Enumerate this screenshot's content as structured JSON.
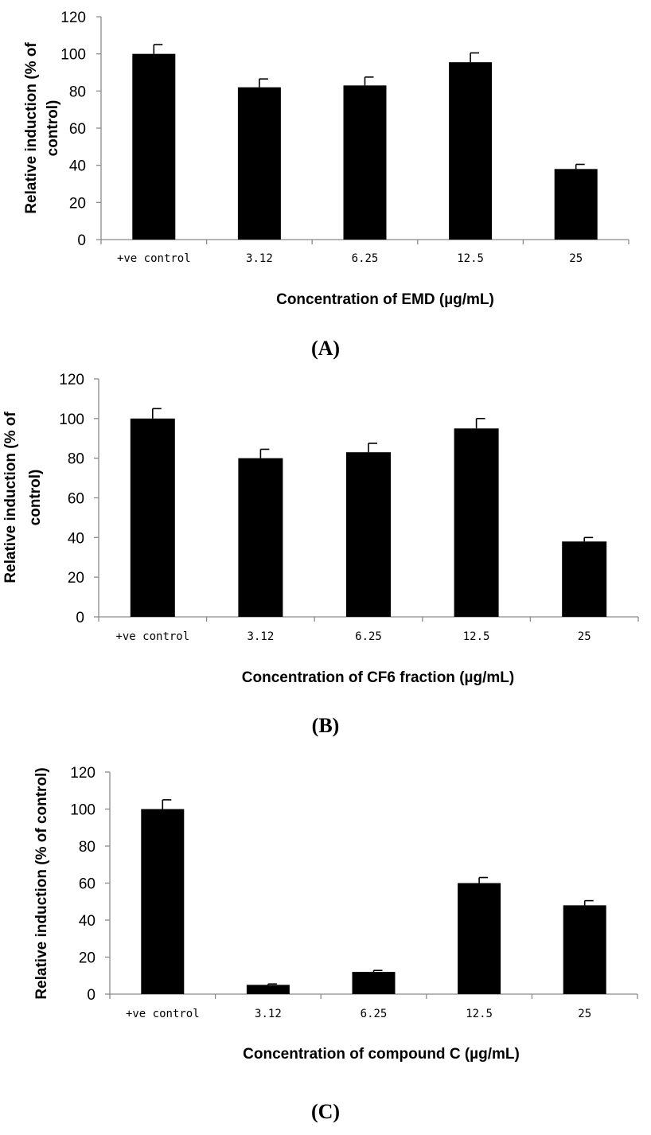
{
  "chart_data": [
    {
      "type": "bar",
      "title": "",
      "xlabel": "Concentration of EMD (µg/mL)",
      "ylabel_lines": [
        "Relative induction (% of",
        "control)"
      ],
      "panel_label": "(A)",
      "categories": [
        "+ve control",
        "3.12",
        "6.25",
        "12.5",
        "25"
      ],
      "values": [
        100,
        82,
        83,
        95.5,
        38
      ],
      "errors": [
        5,
        4.5,
        4.5,
        5,
        2.5
      ],
      "ylim": [
        0,
        120
      ],
      "yticks": [
        0,
        20,
        40,
        60,
        80,
        100,
        120
      ],
      "grid": false,
      "bar_color": "#000000"
    },
    {
      "type": "bar",
      "title": "",
      "xlabel": "Concentration of CF6 fraction (µg/mL)",
      "ylabel_lines": [
        "Relative induction (% of",
        "control)"
      ],
      "panel_label": "(B)",
      "categories": [
        "+ve control",
        "3.12",
        "6.25",
        "12.5",
        "25"
      ],
      "values": [
        100,
        80,
        83,
        95,
        38
      ],
      "errors": [
        5,
        4.5,
        4.5,
        5,
        2
      ],
      "ylim": [
        0,
        120
      ],
      "yticks": [
        0,
        20,
        40,
        60,
        80,
        100,
        120
      ],
      "grid": false,
      "bar_color": "#000000"
    },
    {
      "type": "bar",
      "title": "",
      "xlabel": "Concentration of compound C (µg/mL)",
      "ylabel_lines": [
        "Relative induction (% of control)"
      ],
      "panel_label": "(C)",
      "categories": [
        "+ve control",
        "3.12",
        "6.25",
        "12.5",
        "25"
      ],
      "values": [
        100,
        5,
        12,
        60,
        48
      ],
      "errors": [
        5,
        0.5,
        0.8,
        3,
        2.5
      ],
      "ylim": [
        0,
        120
      ],
      "yticks": [
        0,
        20,
        40,
        60,
        80,
        100,
        120
      ],
      "grid": false,
      "bar_color": "#000000"
    }
  ]
}
